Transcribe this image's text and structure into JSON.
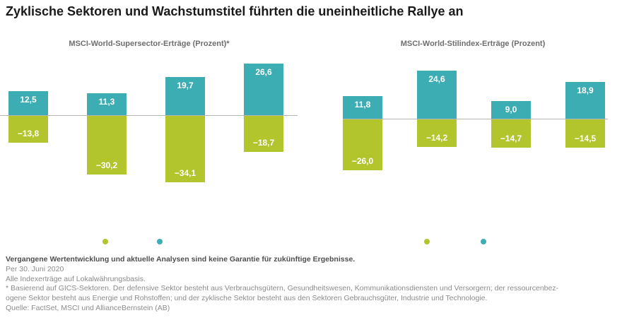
{
  "page": {
    "title": "Zyklische Sektoren und Wachstumstitel führten die uneinheitliche Rallye an"
  },
  "colors": {
    "positive": "#3dadb4",
    "negative": "#b2c52d",
    "bar_label": "#ffffff",
    "zero_line": "#b5b5b5"
  },
  "chart_data": [
    {
      "type": "bar",
      "title": "MSCI-World-Supersector-Erträge (Prozent)*",
      "ylabel": "Prozent",
      "series": [
        {
          "name": "positive-returns",
          "color": "#3dadb4",
          "values": [
            12.5,
            11.3,
            19.7,
            26.6
          ],
          "labels": [
            "12,5",
            "11,3",
            "19,7",
            "26,6"
          ]
        },
        {
          "name": "negative-returns",
          "color": "#b2c52d",
          "values": [
            -13.8,
            -30.2,
            -34.1,
            -18.7
          ],
          "labels": [
            "−13,8",
            "−30,2",
            "−34,1",
            "−18,7"
          ]
        }
      ]
    },
    {
      "type": "bar",
      "title": "MSCI-World-Stilindex-Erträge (Prozent)",
      "ylabel": "Prozent",
      "series": [
        {
          "name": "positive-returns",
          "color": "#3dadb4",
          "values": [
            11.8,
            24.6,
            9.0,
            18.9
          ],
          "labels": [
            "11,8",
            "24,6",
            "9,0",
            "18,9"
          ]
        },
        {
          "name": "negative-returns",
          "color": "#b2c52d",
          "values": [
            -26.0,
            -14.2,
            -14.7,
            -14.5
          ],
          "labels": [
            "−26,0",
            "−14,2",
            "−14,7",
            "−14,5"
          ]
        }
      ]
    }
  ],
  "legend": {
    "colors": [
      "#b2c52d",
      "#3dadb4"
    ]
  },
  "footer": {
    "disclaimer": "Vergangene Wertentwicklung und aktuelle Analysen sind keine Garantie für zukünftige Ergebnisse.",
    "as_of": "Per 30. Juni 2020",
    "note_index": "Alle Indexerträge auf Lokalwährungsbasis.",
    "footnote_lines": [
      "* Basierend auf GICS-Sektoren. Der defensive Sektor besteht aus Verbrauchsgütern, Gesundheitswesen, Kommunikationsdiensten und Versorgern; der ressourcenbez-",
      "ogene Sektor besteht aus Energie und Rohstoffen; und der zyklische Sektor besteht aus den Sektoren Gebrauchsgüter, Industrie und Technologie."
    ],
    "source": "Quelle: FactSet, MSCI und AllianceBernstein (AB)"
  }
}
